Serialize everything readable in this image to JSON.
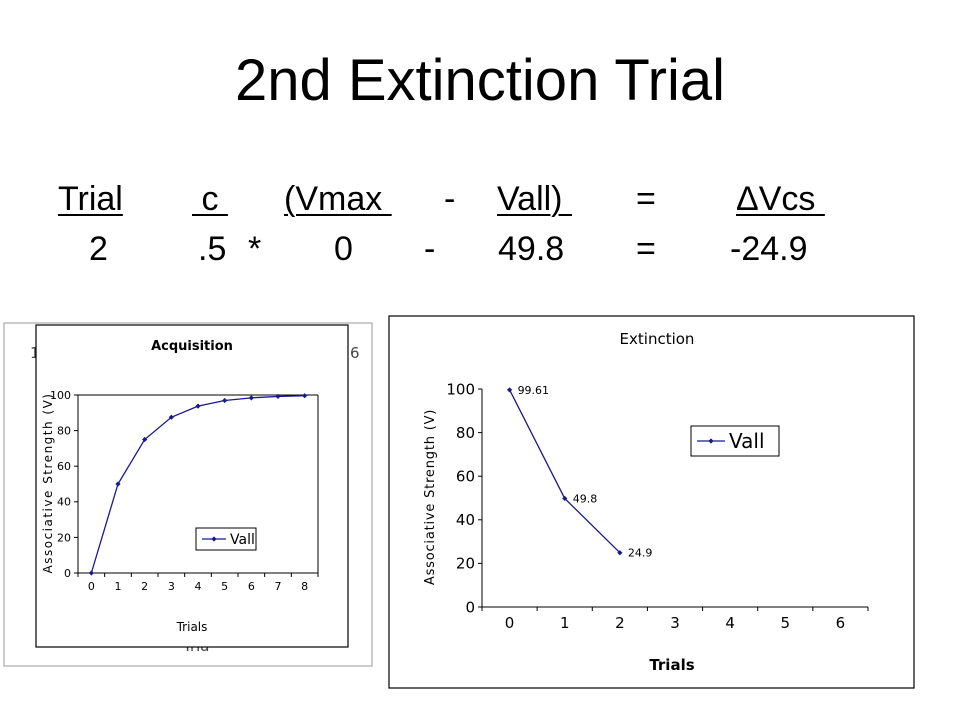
{
  "slide": {
    "title": "2nd Extinction Trial",
    "header_row": [
      "Trial",
      " c ",
      "(Vmax ",
      "-",
      "Vall) ",
      "=",
      "ΔVcs "
    ],
    "value_row": [
      "2",
      ".5",
      "*",
      "0",
      "-",
      "49.8",
      "=",
      "-24.9"
    ]
  },
  "chart_data": [
    {
      "type": "line",
      "title": "Acquisition",
      "xlabel": "Trials",
      "ylabel": "Associative Strength (V)",
      "x": [
        0,
        1,
        2,
        3,
        4,
        5,
        6,
        7,
        8
      ],
      "xticks": [
        "0",
        "1",
        "2",
        "3",
        "4",
        "5",
        "6",
        "7",
        "8"
      ],
      "yticks": [
        "0",
        "20",
        "40",
        "60",
        "80",
        "100"
      ],
      "ylim": [
        0,
        100
      ],
      "grid": false,
      "legend": "bottom-right",
      "series": [
        {
          "name": "Vall",
          "values": [
            0,
            50,
            75,
            87.5,
            93.75,
            96.9,
            98.4,
            99.2,
            99.6
          ]
        }
      ],
      "behind_fragments": {
        "left": "1",
        "right": "6",
        "bottom": "Tria"
      }
    },
    {
      "type": "line",
      "title": "Extinction",
      "xlabel": "Trials",
      "ylabel": "Associative Strength (V)",
      "x": [
        0,
        1,
        2
      ],
      "xticks": [
        "0",
        "1",
        "2",
        "3",
        "4",
        "5",
        "6"
      ],
      "yticks": [
        "0",
        "20",
        "40",
        "60",
        "80",
        "100"
      ],
      "ylim": [
        0,
        100
      ],
      "grid": false,
      "legend": "top-right",
      "series": [
        {
          "name": "Vall",
          "values": [
            99.61,
            49.8,
            24.9
          ],
          "labels": [
            "99.61",
            "49.8",
            "24.9"
          ]
        }
      ]
    }
  ]
}
